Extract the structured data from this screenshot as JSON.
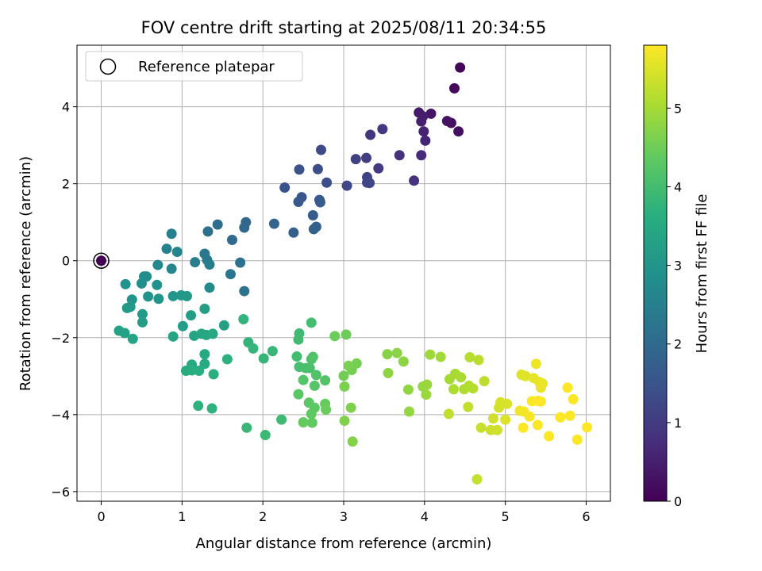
{
  "chart_data": {
    "type": "scatter",
    "title": "FOV centre drift starting at 2025/08/11 20:34:55",
    "xlabel": "Angular distance from reference (arcmin)",
    "ylabel": "Rotation from reference (arcmin)",
    "xlim": [
      -0.3,
      6.3
    ],
    "ylim": [
      -6.25,
      5.6
    ],
    "xticks": [
      0,
      1,
      2,
      3,
      4,
      5,
      6
    ],
    "yticks": [
      -6,
      -4,
      -2,
      0,
      2,
      4
    ],
    "grid": true,
    "legend": {
      "placement": "upper-left",
      "entries": [
        "Reference platepar"
      ]
    },
    "reference_point": {
      "x": 0,
      "y": 0
    },
    "colorbar": {
      "label": "Hours from first FF file",
      "colormap": "viridis",
      "range": [
        0,
        5.8
      ],
      "ticks": [
        0,
        1,
        2,
        3,
        4,
        5
      ]
    },
    "points": [
      [
        0,
        0,
        0.0
      ],
      [
        4.44,
        5.02,
        0.1
      ],
      [
        4.37,
        4.48,
        0.15
      ],
      [
        4.42,
        3.36,
        0.2
      ],
      [
        4.33,
        3.58,
        0.25
      ],
      [
        4.28,
        3.63,
        0.3
      ],
      [
        4.08,
        3.82,
        0.35
      ],
      [
        3.93,
        3.85,
        0.4
      ],
      [
        3.98,
        3.75,
        0.45
      ],
      [
        3.96,
        3.62,
        0.5
      ],
      [
        3.99,
        3.36,
        0.55
      ],
      [
        4.01,
        3.12,
        0.6
      ],
      [
        3.96,
        2.74,
        0.7
      ],
      [
        3.69,
        2.74,
        0.8
      ],
      [
        3.87,
        2.08,
        0.85
      ],
      [
        3.48,
        3.42,
        0.9
      ],
      [
        3.33,
        3.27,
        0.95
      ],
      [
        3.43,
        2.4,
        1.0
      ],
      [
        3.28,
        2.67,
        1.05
      ],
      [
        3.15,
        2.64,
        1.1
      ],
      [
        3.29,
        2.17,
        1.15
      ],
      [
        3.29,
        2.03,
        1.2
      ],
      [
        3.32,
        2.02,
        1.22
      ],
      [
        3.04,
        1.95,
        1.25
      ],
      [
        2.72,
        2.88,
        1.3
      ],
      [
        2.68,
        2.38,
        1.35
      ],
      [
        2.79,
        2.03,
        1.4
      ],
      [
        2.45,
        2.37,
        1.45
      ],
      [
        2.27,
        1.9,
        1.5
      ],
      [
        2.48,
        1.65,
        1.55
      ],
      [
        2.44,
        1.53,
        1.6
      ],
      [
        2.7,
        1.58,
        1.62
      ],
      [
        2.71,
        1.52,
        1.65
      ],
      [
        2.62,
        1.18,
        1.7
      ],
      [
        2.66,
        0.88,
        1.75
      ],
      [
        2.63,
        0.82,
        1.78
      ],
      [
        2.38,
        0.73,
        1.8
      ],
      [
        2.14,
        0.96,
        1.85
      ],
      [
        1.79,
        1.0,
        1.9
      ],
      [
        1.77,
        0.86,
        1.95
      ],
      [
        1.62,
        0.54,
        2.0
      ],
      [
        1.44,
        0.94,
        2.05
      ],
      [
        1.32,
        0.76,
        2.1
      ],
      [
        1.72,
        -0.05,
        2.15
      ],
      [
        1.77,
        -0.79,
        2.2
      ],
      [
        1.6,
        -0.35,
        2.25
      ],
      [
        1.28,
        0.18,
        2.3
      ],
      [
        1.31,
        0.02,
        2.35
      ],
      [
        1.34,
        -0.1,
        2.4
      ],
      [
        1.16,
        -0.04,
        2.45
      ],
      [
        0.87,
        0.7,
        2.5
      ],
      [
        0.81,
        0.31,
        2.55
      ],
      [
        0.94,
        0.23,
        2.6
      ],
      [
        0.87,
        -0.21,
        2.65
      ],
      [
        0.7,
        -0.11,
        2.7
      ],
      [
        1.34,
        -0.7,
        2.75
      ],
      [
        0.53,
        -0.41,
        2.8
      ],
      [
        0.56,
        -0.41,
        2.82
      ],
      [
        0.5,
        -0.59,
        2.85
      ],
      [
        0.69,
        -0.63,
        2.9
      ],
      [
        0.3,
        -0.61,
        2.92
      ],
      [
        0.58,
        -0.93,
        2.95
      ],
      [
        0.38,
        -1.01,
        2.97
      ],
      [
        0.71,
        -0.99,
        3.0
      ],
      [
        0.89,
        -0.92,
        3.02
      ],
      [
        0.99,
        -0.9,
        3.05
      ],
      [
        1.06,
        -0.92,
        3.07
      ],
      [
        0.36,
        -1.2,
        3.1
      ],
      [
        0.32,
        -1.23,
        3.12
      ],
      [
        0.51,
        -1.39,
        3.15
      ],
      [
        0.51,
        -1.6,
        3.17
      ],
      [
        1.11,
        -1.42,
        3.2
      ],
      [
        1.01,
        -1.7,
        3.22
      ],
      [
        1.28,
        -1.25,
        3.25
      ],
      [
        1.52,
        -1.68,
        3.27
      ],
      [
        0.22,
        -1.82,
        3.3
      ],
      [
        0.29,
        -1.88,
        3.32
      ],
      [
        0.39,
        -2.03,
        3.35
      ],
      [
        0.89,
        -1.97,
        3.37
      ],
      [
        1.15,
        -1.95,
        3.4
      ],
      [
        1.24,
        -1.9,
        3.42
      ],
      [
        1.3,
        -1.93,
        3.45
      ],
      [
        1.38,
        -1.9,
        3.47
      ],
      [
        1.28,
        -2.43,
        3.5
      ],
      [
        1.12,
        -2.7,
        3.52
      ],
      [
        1.28,
        -2.68,
        3.55
      ],
      [
        1.05,
        -2.86,
        3.57
      ],
      [
        1.12,
        -2.85,
        3.6
      ],
      [
        1.21,
        -2.86,
        3.62
      ],
      [
        1.39,
        -2.95,
        3.65
      ],
      [
        1.56,
        -2.56,
        3.67
      ],
      [
        1.2,
        -3.77,
        3.7
      ],
      [
        1.37,
        -3.84,
        3.72
      ],
      [
        1.76,
        -1.52,
        3.75
      ],
      [
        1.82,
        -2.12,
        3.77
      ],
      [
        1.88,
        -2.28,
        3.8
      ],
      [
        2.01,
        -2.54,
        3.82
      ],
      [
        2.12,
        -2.35,
        3.85
      ],
      [
        1.8,
        -4.34,
        3.87
      ],
      [
        2.03,
        -4.53,
        3.9
      ],
      [
        2.23,
        -4.13,
        3.92
      ],
      [
        2.45,
        -1.89,
        3.95
      ],
      [
        2.44,
        -2.05,
        3.97
      ],
      [
        2.42,
        -2.49,
        4.0
      ],
      [
        2.6,
        -1.61,
        4.02
      ],
      [
        2.45,
        -2.76,
        4.05
      ],
      [
        2.53,
        -2.79,
        4.07
      ],
      [
        2.58,
        -2.79,
        4.1
      ],
      [
        2.6,
        -2.56,
        4.12
      ],
      [
        2.62,
        -2.5,
        4.15
      ],
      [
        2.66,
        -2.97,
        4.17
      ],
      [
        2.77,
        -3.11,
        4.2
      ],
      [
        2.5,
        -3.1,
        4.22
      ],
      [
        2.64,
        -3.25,
        4.25
      ],
      [
        2.44,
        -3.47,
        4.27
      ],
      [
        2.57,
        -3.69,
        4.3
      ],
      [
        2.64,
        -3.82,
        4.32
      ],
      [
        2.6,
        -3.98,
        4.35
      ],
      [
        2.61,
        -4.21,
        4.37
      ],
      [
        2.5,
        -4.2,
        4.4
      ],
      [
        2.77,
        -3.72,
        4.42
      ],
      [
        2.78,
        -3.87,
        4.45
      ],
      [
        2.89,
        -1.96,
        4.47
      ],
      [
        3.03,
        -1.92,
        4.5
      ],
      [
        3.0,
        -2.99,
        4.52
      ],
      [
        3.1,
        -2.84,
        4.55
      ],
      [
        3.16,
        -2.67,
        4.57
      ],
      [
        3.06,
        -2.73,
        4.6
      ],
      [
        3.01,
        -3.27,
        4.62
      ],
      [
        3.09,
        -3.82,
        4.65
      ],
      [
        3.01,
        -4.16,
        4.67
      ],
      [
        3.11,
        -4.7,
        4.7
      ],
      [
        3.54,
        -2.43,
        4.72
      ],
      [
        3.66,
        -2.4,
        4.75
      ],
      [
        3.74,
        -2.62,
        4.77
      ],
      [
        3.55,
        -2.92,
        4.8
      ],
      [
        3.8,
        -3.35,
        4.82
      ],
      [
        3.81,
        -3.92,
        4.85
      ],
      [
        3.98,
        -3.27,
        4.87
      ],
      [
        4.03,
        -3.22,
        4.9
      ],
      [
        4.02,
        -3.48,
        4.92
      ],
      [
        4.07,
        -2.44,
        4.95
      ],
      [
        4.2,
        -2.5,
        4.97
      ],
      [
        4.31,
        -3.08,
        5.0
      ],
      [
        4.38,
        -2.94,
        5.02
      ],
      [
        4.45,
        -3.03,
        5.05
      ],
      [
        4.36,
        -3.34,
        5.07
      ],
      [
        4.49,
        -3.34,
        5.1
      ],
      [
        4.55,
        -3.25,
        5.12
      ],
      [
        4.6,
        -3.32,
        5.15
      ],
      [
        4.56,
        -2.51,
        5.17
      ],
      [
        4.67,
        -2.58,
        5.2
      ],
      [
        4.74,
        -3.13,
        5.22
      ],
      [
        4.3,
        -3.98,
        5.25
      ],
      [
        4.54,
        -3.8,
        5.27
      ],
      [
        4.65,
        -5.68,
        5.3
      ],
      [
        4.7,
        -4.34,
        5.32
      ],
      [
        4.82,
        -4.4,
        5.35
      ],
      [
        4.9,
        -4.4,
        5.37
      ],
      [
        4.85,
        -4.1,
        5.4
      ],
      [
        4.92,
        -3.82,
        5.42
      ],
      [
        4.94,
        -3.68,
        5.45
      ],
      [
        5.02,
        -3.72,
        5.47
      ],
      [
        5.0,
        -4.13,
        5.5
      ],
      [
        5.2,
        -2.96,
        5.52
      ],
      [
        5.25,
        -3.0,
        5.55
      ],
      [
        5.35,
        -3.05,
        5.57
      ],
      [
        5.42,
        -3.15,
        5.6
      ],
      [
        5.44,
        -3.3,
        5.62
      ],
      [
        5.46,
        -3.19,
        5.65
      ],
      [
        5.38,
        -2.68,
        5.67
      ],
      [
        5.18,
        -3.9,
        5.7
      ],
      [
        5.23,
        -3.92,
        5.72
      ],
      [
        5.3,
        -4.05,
        5.74
      ],
      [
        5.33,
        -3.65,
        5.76
      ],
      [
        5.4,
        -3.64,
        5.78
      ],
      [
        5.44,
        -3.66,
        5.78
      ],
      [
        5.22,
        -4.34,
        5.78
      ],
      [
        5.4,
        -4.27,
        5.78
      ],
      [
        5.54,
        -4.56,
        5.78
      ],
      [
        5.68,
        -4.07,
        5.78
      ],
      [
        5.77,
        -3.3,
        5.78
      ],
      [
        5.8,
        -4.03,
        5.78
      ],
      [
        5.84,
        -3.6,
        5.78
      ],
      [
        5.89,
        -4.65,
        5.78
      ],
      [
        6.01,
        -4.33,
        5.78
      ]
    ]
  }
}
